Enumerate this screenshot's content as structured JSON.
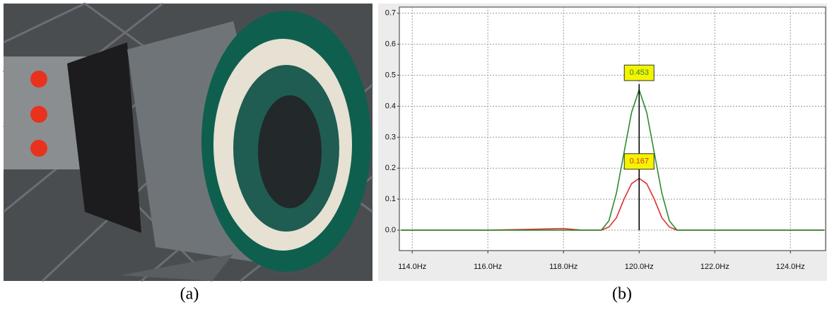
{
  "chart_data": {
    "type": "line",
    "x": [
      113.7,
      114,
      116,
      118,
      118.5,
      119,
      119.2,
      119.4,
      119.6,
      119.8,
      120,
      120.2,
      120.4,
      120.6,
      120.8,
      121,
      122,
      124,
      124.9
    ],
    "series": [
      {
        "name": "red",
        "color": "#e03030",
        "values": [
          0,
          0,
          0,
          0.005,
          0,
          0,
          0.01,
          0.04,
          0.1,
          0.15,
          0.167,
          0.15,
          0.1,
          0.04,
          0.01,
          0,
          0,
          0,
          0
        ]
      },
      {
        "name": "green",
        "color": "#2e8b2e",
        "values": [
          0,
          0,
          0,
          0,
          0,
          0,
          0.03,
          0.12,
          0.25,
          0.38,
          0.453,
          0.38,
          0.25,
          0.12,
          0.03,
          0,
          0,
          0,
          0
        ]
      }
    ],
    "xlim": [
      113.66,
      124.93
    ],
    "ylim": [
      -0.066,
      0.72
    ],
    "xticks": [
      {
        "value": 114,
        "label": "114.0Hz"
      },
      {
        "value": 116,
        "label": "116.0Hz"
      },
      {
        "value": 118,
        "label": "118.0Hz"
      },
      {
        "value": 120,
        "label": "120.0Hz"
      },
      {
        "value": 122,
        "label": "122.0Hz"
      },
      {
        "value": 124,
        "label": "124.0Hz"
      }
    ],
    "yticks": [
      {
        "value": 0,
        "label": "0.0"
      },
      0.1,
      0.2,
      0.3,
      0.4,
      0.5,
      0.6,
      0.7
    ],
    "grid": true,
    "annotations": [
      {
        "text": "0.453",
        "x": 120,
        "y": 0.453
      },
      {
        "text": "0.167",
        "x": 120,
        "y": 0.167
      }
    ]
  },
  "captions": [
    "(a)",
    "(b)"
  ]
}
